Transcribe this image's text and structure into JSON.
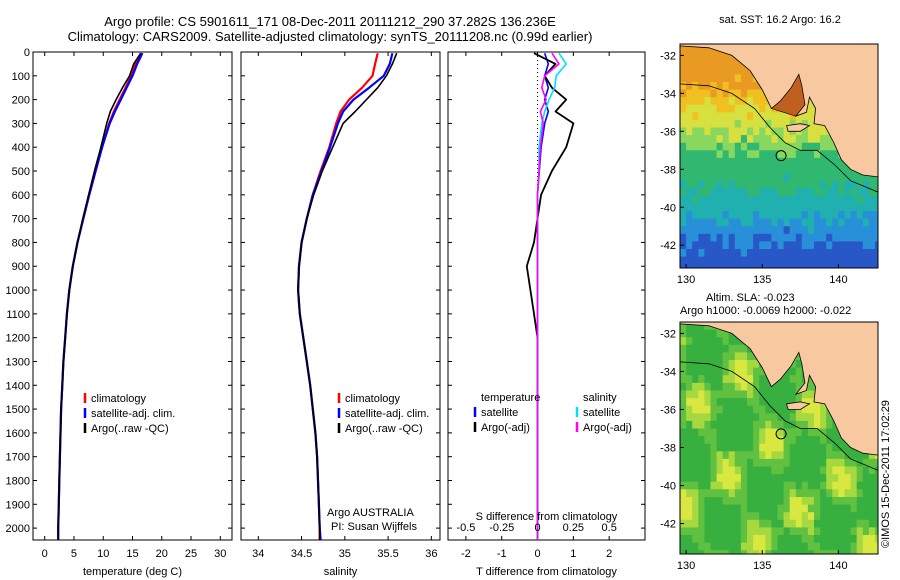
{
  "header": {
    "line1": "Argo profile: CS 5901611_171 08-Dec-2011 20111212_290 37.282S 136.236E",
    "line2": "Climatology: CARS2009. Satellite-adjusted climatology: synTS_20111208.nc (0.99d earlier)"
  },
  "maps": {
    "sst_title": "sat. SST: 16.2 Argo: 16.2",
    "sla_title_line1": "Altim. SLA: -0.023",
    "sla_title_line2": "Argo h1000: -0.0069 h2000: -0.022",
    "lat_ticks": [
      "-32",
      "-34",
      "-36",
      "-38",
      "-40",
      "-42"
    ],
    "lon_ticks": [
      "130",
      "135",
      "140"
    ],
    "land_color": "#f8c8a0",
    "float_position": {
      "lon": 136.236,
      "lat": -37.282
    }
  },
  "side_credit": "©IMOS 15-Dec-2011 17:02:29",
  "legends": {
    "temp_items": [
      "climatology",
      "satellite-adj. clim.",
      "Argo(..raw -QC)"
    ],
    "sal_items": [
      "climatology",
      "satellite-adj. clim.",
      "Argo(..raw -QC)"
    ],
    "diff_left_title": "temperature",
    "diff_left_items": [
      "satellite",
      "Argo(-adj)"
    ],
    "diff_right_title": "salinity",
    "diff_right_items": [
      "satellite",
      "Argo(-adj)"
    ]
  },
  "annotations": {
    "argo_country": "Argo AUSTRALIA",
    "pi": "PI: Susan Wijffels"
  },
  "colors": {
    "climatology": "#ff0000",
    "satellite": "#0000ff",
    "argo": "#000000",
    "sal_satellite": "#00e0ff",
    "sal_argo": "#ff00ff"
  },
  "chart_data": [
    {
      "type": "line",
      "xlabel": "temperature (deg C)",
      "ylabel": "",
      "xlim": [
        -2,
        32
      ],
      "ylim": [
        2050,
        0
      ],
      "x_ticks": [
        "0",
        "5",
        "10",
        "15",
        "20",
        "25",
        "30"
      ],
      "y_ticks": [
        "0",
        "100",
        "200",
        "300",
        "400",
        "500",
        "600",
        "700",
        "800",
        "900",
        "1000",
        "1100",
        "1200",
        "1300",
        "1400",
        "1500",
        "1600",
        "1700",
        "1800",
        "1900",
        "2000"
      ],
      "depth": [
        5,
        50,
        100,
        150,
        200,
        250,
        300,
        400,
        500,
        600,
        700,
        800,
        900,
        1000,
        1100,
        1200,
        1300,
        1400,
        1500,
        1600,
        1700,
        1800,
        1900,
        2000,
        2050
      ],
      "series": [
        {
          "name": "climatology",
          "values": [
            16.5,
            15.5,
            14.8,
            13.8,
            12.8,
            11.8,
            11.0,
            9.8,
            8.7,
            7.6,
            6.6,
            5.6,
            4.8,
            4.2,
            3.8,
            3.5,
            3.2,
            3.0,
            2.8,
            2.7,
            2.6,
            2.5,
            2.4,
            2.3,
            2.3
          ]
        },
        {
          "name": "satellite-adj. clim.",
          "values": [
            16.7,
            15.8,
            15.0,
            14.0,
            13.0,
            12.0,
            11.1,
            9.8,
            8.7,
            7.6,
            6.6,
            5.6,
            4.8,
            4.2,
            3.8,
            3.5,
            3.2,
            3.0,
            2.8,
            2.7,
            2.6,
            2.5,
            2.4,
            2.3,
            2.3
          ]
        },
        {
          "name": "Argo(..raw -QC)",
          "values": [
            16.4,
            15.2,
            14.5,
            13.3,
            12.2,
            11.2,
            10.6,
            9.6,
            8.5,
            7.5,
            6.5,
            5.6,
            4.8,
            4.2,
            3.8,
            3.5,
            3.2,
            3.0,
            2.8,
            2.7,
            2.6,
            2.5,
            2.4,
            2.3,
            2.3
          ]
        }
      ]
    },
    {
      "type": "line",
      "xlabel": "salinity",
      "ylabel": "",
      "xlim": [
        33.8,
        36.1
      ],
      "ylim": [
        2050,
        0
      ],
      "x_ticks": [
        "34",
        "34.5",
        "35",
        "35.5",
        "36"
      ],
      "depth": [
        5,
        50,
        100,
        150,
        200,
        250,
        300,
        400,
        500,
        600,
        700,
        800,
        900,
        1000,
        1100,
        1200,
        1300,
        1400,
        1500,
        1600,
        1700,
        1800,
        1900,
        2000,
        2050
      ],
      "series": [
        {
          "name": "climatology",
          "values": [
            35.38,
            35.35,
            35.32,
            35.2,
            35.05,
            34.95,
            34.9,
            34.82,
            34.72,
            34.63,
            34.56,
            34.5,
            34.47,
            34.46,
            34.48,
            34.52,
            34.56,
            34.6,
            34.63,
            34.66,
            34.68,
            34.69,
            34.7,
            34.71,
            34.71
          ]
        },
        {
          "name": "satellite-adj. clim.",
          "values": [
            35.55,
            35.52,
            35.45,
            35.28,
            35.1,
            34.98,
            34.92,
            34.83,
            34.73,
            34.63,
            34.56,
            34.5,
            34.47,
            34.46,
            34.48,
            34.52,
            34.56,
            34.6,
            34.63,
            34.66,
            34.68,
            34.69,
            34.7,
            34.71,
            34.72
          ]
        },
        {
          "name": "Argo(..raw -QC)",
          "values": [
            35.6,
            35.55,
            35.48,
            35.38,
            35.25,
            35.12,
            34.98,
            34.86,
            34.74,
            34.64,
            34.56,
            34.5,
            34.47,
            34.46,
            34.48,
            34.52,
            34.56,
            34.6,
            34.63,
            34.66,
            34.68,
            34.69,
            34.7,
            34.71,
            34.71
          ]
        }
      ]
    },
    {
      "type": "line",
      "xlabel": "T difference from climatology",
      "x2label": "S difference from climatology",
      "xlim": [
        -2.5,
        3.0
      ],
      "x2lim": [
        -0.625,
        0.75
      ],
      "ylim": [
        2050,
        0
      ],
      "x_ticks": [
        "-2",
        "-1",
        "0",
        "1",
        "2"
      ],
      "x2_ticks": [
        "-0.5",
        "-0.25",
        "0",
        "0.25",
        "0.5"
      ],
      "depth": [
        5,
        50,
        100,
        150,
        200,
        250,
        300,
        400,
        500,
        600,
        700,
        800,
        900,
        1000,
        1100,
        1200,
        1300,
        1400,
        1500,
        1600,
        1700,
        1800,
        1900,
        2000,
        2050
      ],
      "series": [
        {
          "name": "temperature satellite",
          "values": [
            0.2,
            0.3,
            0.2,
            0.3,
            0.2,
            0.3,
            0.2,
            0.1,
            0.05,
            0,
            0,
            0,
            0,
            0,
            0,
            0,
            0,
            0,
            0,
            0,
            0,
            0,
            0,
            0,
            0
          ]
        },
        {
          "name": "temperature Argo(-adj)",
          "values": [
            -0.1,
            0.5,
            0.2,
            0.4,
            0.8,
            0.5,
            1.0,
            0.8,
            0.4,
            0.1,
            0,
            -0.1,
            -0.3,
            -0.2,
            -0.1,
            0,
            0,
            0,
            0,
            0,
            0,
            0,
            0,
            0,
            0
          ]
        },
        {
          "name": "salinity satellite",
          "values": [
            0.15,
            0.2,
            0.13,
            0.12,
            0.08,
            0.05,
            0.03,
            0.01,
            0.01,
            0,
            0,
            0,
            0,
            0,
            0,
            0,
            0,
            0,
            0,
            0,
            0,
            0,
            0,
            0,
            0
          ]
        },
        {
          "name": "salinity Argo(-adj)",
          "values": [
            0.1,
            0.15,
            0.05,
            0.03,
            0.06,
            0.02,
            0.04,
            0.02,
            0.01,
            0,
            0,
            0,
            0,
            0,
            0,
            0,
            0,
            0,
            0,
            0,
            0,
            0,
            0,
            0,
            0
          ]
        }
      ]
    }
  ]
}
